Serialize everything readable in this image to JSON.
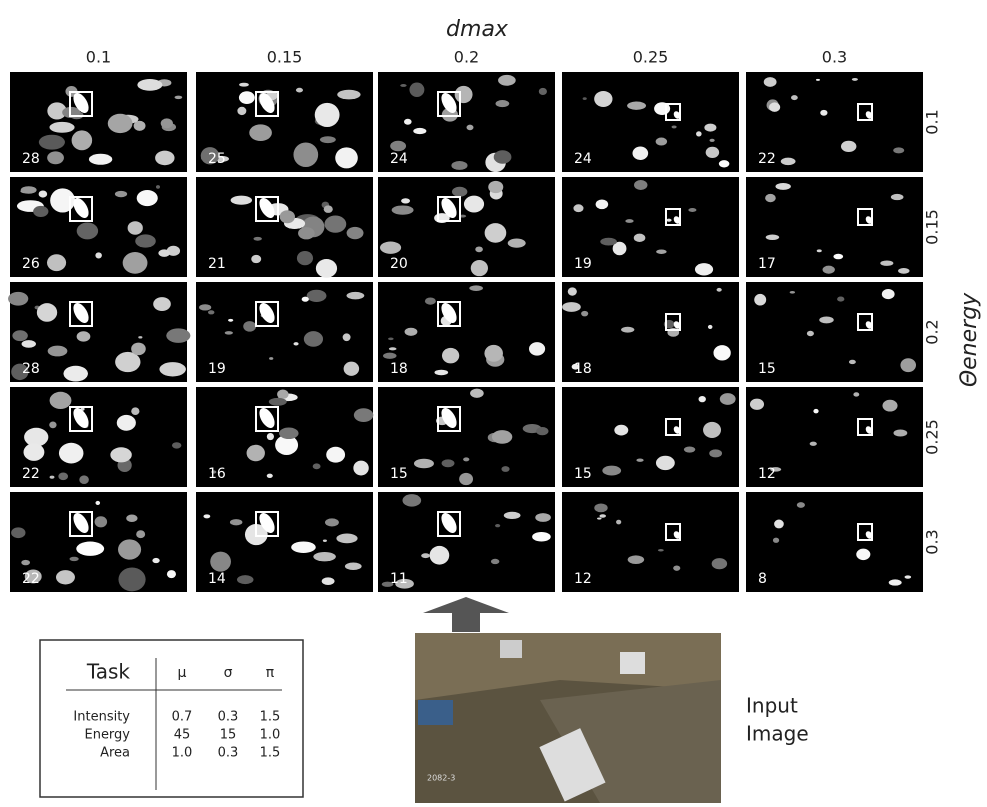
{
  "column_header": {
    "title": "dmax",
    "labels": [
      "0.1",
      "0.15",
      "0.2",
      "0.25",
      "0.3"
    ]
  },
  "row_header": {
    "title": "Θenergy",
    "labels": [
      "0.1",
      "0.15",
      "0.2",
      "0.25",
      "0.3"
    ]
  },
  "grid": {
    "counts": [
      [
        28,
        25,
        24,
        24,
        22
      ],
      [
        26,
        21,
        20,
        19,
        17
      ],
      [
        28,
        19,
        18,
        18,
        15
      ],
      [
        22,
        16,
        15,
        15,
        12
      ],
      [
        22,
        14,
        11,
        12,
        8
      ]
    ]
  },
  "table": {
    "header": [
      "Task",
      "μ",
      "σ",
      "π"
    ],
    "rows": [
      [
        "Intensity",
        "0.7",
        "0.3",
        "1.5"
      ],
      [
        "Energy",
        "45",
        "15",
        "1.0"
      ],
      [
        "Area",
        "1.0",
        "0.3",
        "1.5"
      ]
    ]
  },
  "input": {
    "label_lines": [
      "Input",
      "Image"
    ],
    "stamp": "2082-3"
  }
}
